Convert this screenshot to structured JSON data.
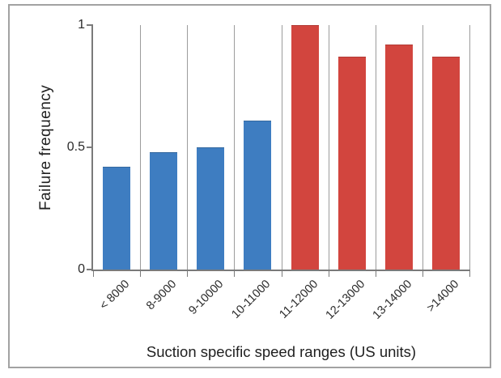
{
  "chart_data": {
    "type": "bar",
    "title": "",
    "xlabel": "Suction specific speed ranges (US units)",
    "ylabel": "Failure frequency",
    "categories": [
      "< 8000",
      "8-9000",
      "9-10000",
      "10-11000",
      "11-12000",
      "12-13000",
      "13-14000",
      ">14000"
    ],
    "values": [
      0.42,
      0.48,
      0.5,
      0.61,
      1.0,
      0.87,
      0.92,
      0.87
    ],
    "bar_colors": [
      "#3e7dc1",
      "#3e7dc1",
      "#3e7dc1",
      "#3e7dc1",
      "#d2453e",
      "#d2453e",
      "#d2453e",
      "#d2453e"
    ],
    "bar_border_colors": [
      "#35699f",
      "#35699f",
      "#35699f",
      "#35699f",
      "#b23a35",
      "#b23a35",
      "#b23a35",
      "#b23a35"
    ],
    "group_colors": {
      "low_speed_blue": "#3e7dc1",
      "high_speed_red": "#d2453e"
    },
    "ylim": [
      0,
      1
    ],
    "yticks": [
      "0",
      "0.5",
      "1"
    ],
    "grid": "vertical-category-boundaries",
    "legend": "none",
    "frame_color": "#a2a2a2",
    "axis_color": "#7a7a7a",
    "gridline_color": "#9c9c9c"
  }
}
